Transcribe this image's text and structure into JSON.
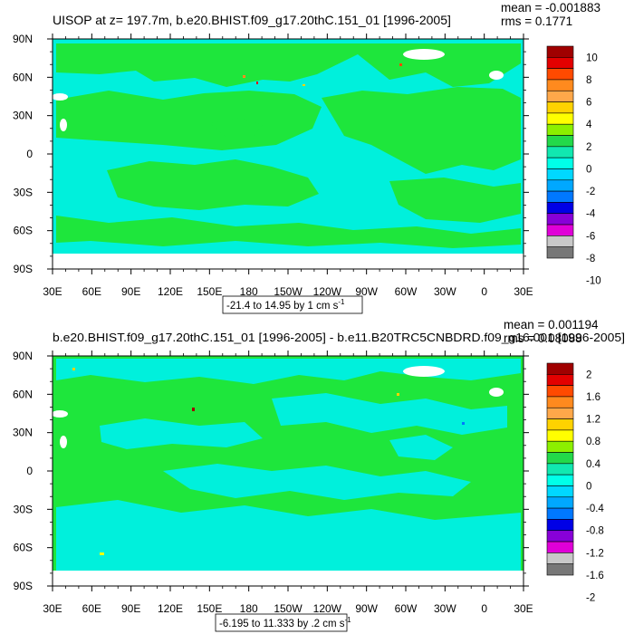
{
  "chart_data": [
    {
      "type": "heatmap",
      "title": "UISOP at z= 197.7m, b.e20.BHIST.f09_g17.20thC.151_01 [1996-2005]",
      "stats": {
        "mean": "mean = -0.001883",
        "rms": "rms = 0.1771"
      },
      "range_label": "-21.4 to 14.95 by 1 cm s",
      "range_unit_exp": "-1",
      "xticks": [
        "30E",
        "60E",
        "90E",
        "120E",
        "150E",
        "180",
        "150W",
        "120W",
        "90W",
        "60W",
        "30W",
        "0",
        "30E"
      ],
      "yticks": [
        "90N",
        "60N",
        "30N",
        "0",
        "30S",
        "60S",
        "90S"
      ],
      "colorbar": {
        "labels": [
          "10",
          "8",
          "6",
          "4",
          "2",
          "0",
          "-2",
          "-4",
          "-6",
          "-8",
          "-10"
        ],
        "colors": [
          "#a00000",
          "#e30000",
          "#ff4a00",
          "#ff8a1e",
          "#ffa84a",
          "#ffd200",
          "#ffff00",
          "#8cf000",
          "#23d94a",
          "#11e8b0",
          "#00ffe8",
          "#00d8ff",
          "#00a8ff",
          "#0078ff",
          "#0000e6",
          "#8800d8",
          "#e000d8",
          "#c8c8c8",
          "#777777"
        ]
      }
    },
    {
      "type": "heatmap",
      "title": "b.e20.BHIST.f09_g17.20thC.151_01 [1996-2005] - b.e11.B20TRC5CNBDRD.f09_g16.001 [1996-2005]",
      "stats": {
        "mean": "mean = 0.001194",
        "rms": "rms = 0.08088"
      },
      "range_label": "-6.195 to 11.333 by .2 cm s",
      "range_unit_exp": "-1",
      "xticks": [
        "30E",
        "60E",
        "90E",
        "120E",
        "150E",
        "180",
        "150W",
        "120W",
        "90W",
        "60W",
        "30W",
        "0",
        "30E"
      ],
      "yticks": [
        "90N",
        "60N",
        "30N",
        "0",
        "30S",
        "60S",
        "90S"
      ],
      "colorbar": {
        "labels": [
          "2",
          "1.6",
          "1.2",
          "0.8",
          "0.4",
          "0",
          "-0.4",
          "-0.8",
          "-1.2",
          "-1.6",
          "-2"
        ],
        "colors": [
          "#a00000",
          "#e30000",
          "#ff4a00",
          "#ff8a1e",
          "#ffa84a",
          "#ffd200",
          "#ffff00",
          "#8cf000",
          "#23d94a",
          "#11e8b0",
          "#00ffe8",
          "#00d8ff",
          "#00a8ff",
          "#0078ff",
          "#0000e6",
          "#8800d8",
          "#e000d8",
          "#c8c8c8",
          "#777777"
        ]
      }
    }
  ],
  "colors": {
    "ocean_cyan": "#00f0dc",
    "ocean_green": "#1ee63c",
    "land": "#ffffff"
  }
}
